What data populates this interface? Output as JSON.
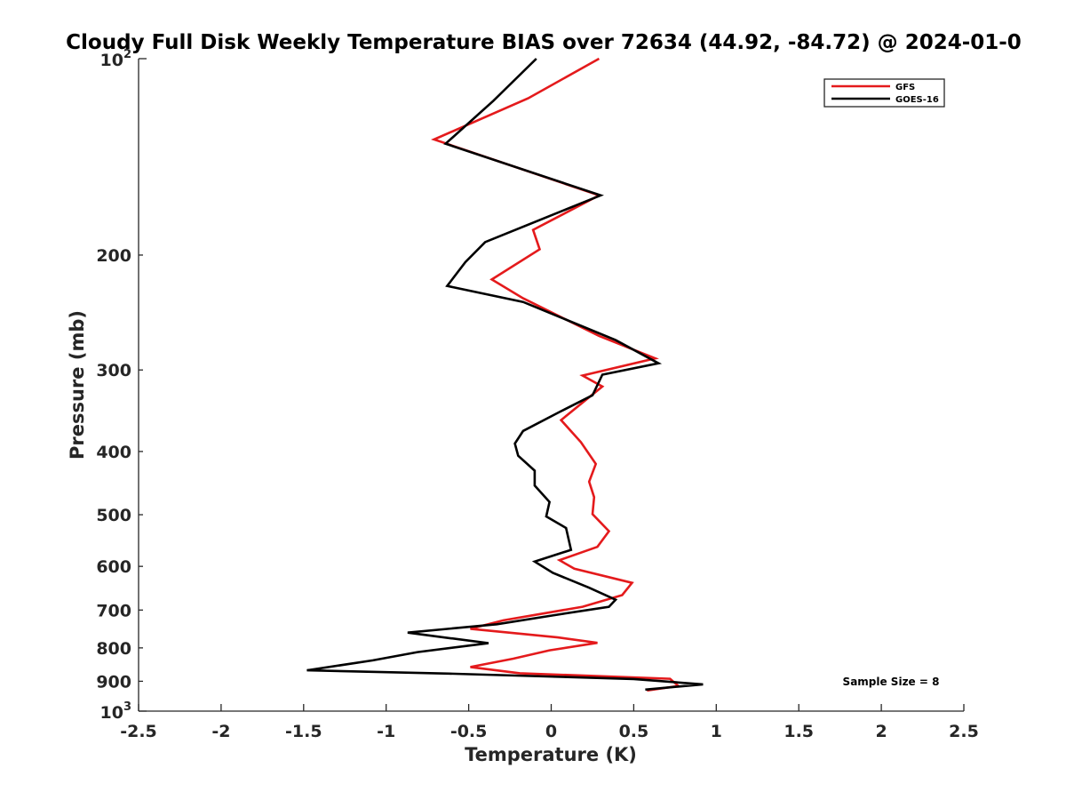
{
  "chart_data": {
    "type": "line",
    "title": "Cloudy Full Disk Weekly Temperature BIAS over 72634 (44.92, -84.72) @ 2024-01-0",
    "xlabel": "Temperature (K)",
    "ylabel": "Pressure (mb)",
    "xlim": [
      -2.5,
      2.5
    ],
    "ylim": [
      100,
      1000
    ],
    "y_scale": "log",
    "y_reversed": true,
    "x_ticks": [
      -2.5,
      -2,
      -1.5,
      -1,
      -0.5,
      0,
      0.5,
      1,
      1.5,
      2,
      2.5
    ],
    "x_tick_labels": [
      "-2.5",
      "-2",
      "-1.5",
      "-1",
      "-0.5",
      "0",
      "0.5",
      "1",
      "1.5",
      "2",
      "2.5"
    ],
    "y_ticks": [
      200,
      300,
      400,
      500,
      600,
      700,
      800,
      900
    ],
    "y_tick_labels": [
      "200",
      "300",
      "400",
      "500",
      "600",
      "700",
      "800",
      "900"
    ],
    "y_tick_top": {
      "base": "10",
      "exp": "2"
    },
    "y_tick_bottom": {
      "base": "10",
      "exp": "3"
    },
    "grid": false,
    "legend_position": "top-right",
    "annotation": "Sample Size = 8",
    "series": [
      {
        "name": "GFS",
        "color": "#e41a1c",
        "points": [
          [
            0.29,
            100
          ],
          [
            -0.14,
            115
          ],
          [
            -0.71,
            133
          ],
          [
            0.29,
            162
          ],
          [
            -0.11,
            183
          ],
          [
            -0.07,
            196
          ],
          [
            -0.36,
            218
          ],
          [
            -0.17,
            233
          ],
          [
            0.29,
            266
          ],
          [
            0.63,
            288
          ],
          [
            0.19,
            306
          ],
          [
            0.31,
            318
          ],
          [
            0.06,
            358
          ],
          [
            0.18,
            387
          ],
          [
            0.27,
            418
          ],
          [
            0.23,
            445
          ],
          [
            0.26,
            470
          ],
          [
            0.25,
            499
          ],
          [
            0.35,
            530
          ],
          [
            0.28,
            560
          ],
          [
            0.05,
            587
          ],
          [
            0.14,
            605
          ],
          [
            0.49,
            636
          ],
          [
            0.43,
            664
          ],
          [
            0.19,
            692
          ],
          [
            -0.29,
            726
          ],
          [
            -0.49,
            748
          ],
          [
            0.04,
            771
          ],
          [
            0.28,
            786
          ],
          [
            -0.01,
            807
          ],
          [
            -0.23,
            831
          ],
          [
            -0.49,
            856
          ],
          [
            -0.19,
            875
          ],
          [
            0.72,
            892
          ],
          [
            0.77,
            915
          ],
          [
            0.58,
            930
          ]
        ]
      },
      {
        "name": "GOES-16",
        "color": "#000000",
        "points": [
          [
            -0.09,
            100
          ],
          [
            -0.35,
            116
          ],
          [
            -0.64,
            135
          ],
          [
            0.3,
            162
          ],
          [
            -0.4,
            191
          ],
          [
            -0.52,
            205
          ],
          [
            -0.63,
            223
          ],
          [
            -0.17,
            236
          ],
          [
            0.39,
            270
          ],
          [
            0.65,
            293
          ],
          [
            0.31,
            305
          ],
          [
            0.25,
            328
          ],
          [
            0.05,
            348
          ],
          [
            -0.17,
            372
          ],
          [
            -0.22,
            389
          ],
          [
            -0.2,
            406
          ],
          [
            -0.1,
            428
          ],
          [
            -0.1,
            451
          ],
          [
            -0.01,
            478
          ],
          [
            -0.03,
            503
          ],
          [
            0.09,
            524
          ],
          [
            0.12,
            566
          ],
          [
            -0.1,
            590
          ],
          [
            0.01,
            614
          ],
          [
            0.23,
            647
          ],
          [
            0.39,
            675
          ],
          [
            0.35,
            692
          ],
          [
            0.0,
            714
          ],
          [
            -0.33,
            736
          ],
          [
            -0.87,
            758
          ],
          [
            -0.38,
            787
          ],
          [
            -0.81,
            812
          ],
          [
            -1.08,
            836
          ],
          [
            -1.48,
            866
          ],
          [
            -0.62,
            876
          ],
          [
            0.5,
            893
          ],
          [
            0.92,
            910
          ],
          [
            0.57,
            927
          ]
        ]
      }
    ]
  }
}
